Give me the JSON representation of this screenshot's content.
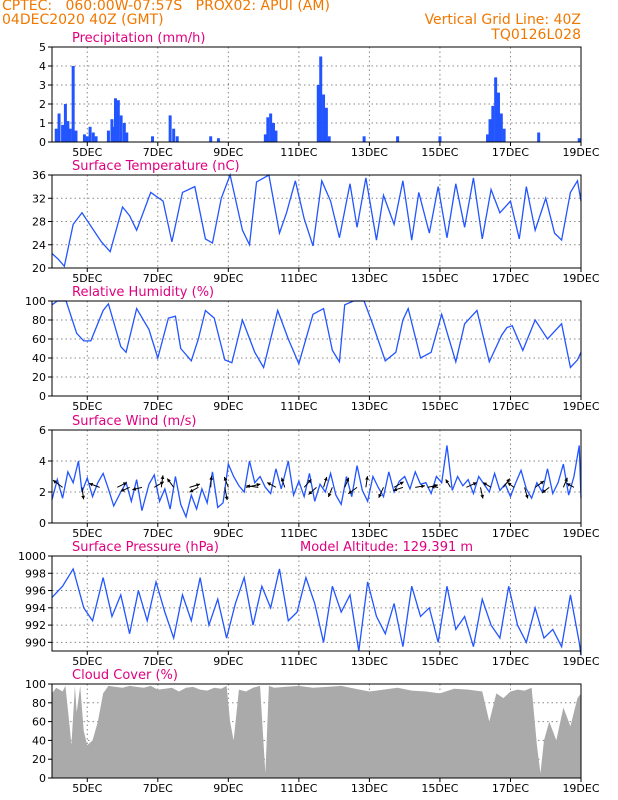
{
  "header": {
    "station": "CPTEC:   060:00W-07:57S   PROX02: APUI (AM)",
    "run": "04DEC2020 40Z (GMT)",
    "grid_note": "Vertical Grid Line: 40Z",
    "model": "TQ0126L028"
  },
  "colors": {
    "series": "#2255ff",
    "title": "#e0007f",
    "header": "#f07800",
    "cloud": "#aaaaaa"
  },
  "x_axis": {
    "range_days": [
      4,
      19
    ],
    "ticks": [
      5,
      7,
      9,
      11,
      13,
      15,
      17,
      19
    ],
    "tick_labels": [
      "5DEC",
      "7DEC",
      "9DEC",
      "11DEC",
      "13DEC",
      "15DEC",
      "17DEC",
      "19DEC"
    ]
  },
  "chart_data": [
    {
      "type": "bar",
      "title": "Precipitation (mm/h)",
      "ylim": [
        0,
        5
      ],
      "yticks": [
        0,
        1,
        2,
        3,
        4,
        5
      ],
      "x": [
        4.12,
        4.2,
        4.3,
        4.38,
        4.45,
        4.52,
        4.6,
        4.68,
        4.92,
        5.0,
        5.08,
        5.17,
        5.25,
        5.6,
        5.7,
        5.75,
        5.8,
        5.88,
        5.96,
        6.05,
        6.12,
        6.85,
        7.35,
        7.45,
        7.55,
        8.5,
        8.72,
        10.05,
        10.12,
        10.2,
        10.28,
        10.35,
        11.55,
        11.62,
        11.7,
        11.78,
        11.86,
        12.85,
        13.8,
        15.0,
        16.35,
        16.42,
        16.5,
        16.58,
        16.66,
        16.74,
        16.82,
        17.8,
        18.95
      ],
      "values": [
        0.7,
        1.5,
        0.9,
        2.0,
        1.1,
        0.7,
        4.0,
        0.6,
        0.4,
        0.3,
        0.8,
        0.5,
        0.3,
        0.6,
        1.2,
        0.8,
        2.3,
        2.2,
        1.4,
        1.0,
        0.5,
        0.3,
        1.4,
        0.7,
        0.3,
        0.3,
        0.2,
        0.4,
        1.3,
        1.5,
        1.0,
        0.6,
        3.0,
        4.5,
        2.5,
        1.8,
        0.3,
        0.3,
        0.3,
        0.3,
        0.4,
        1.2,
        1.9,
        3.4,
        2.6,
        1.5,
        0.7,
        0.5,
        0.2
      ]
    },
    {
      "type": "line",
      "title": "Surface Temperature (nC)",
      "ylim": [
        20,
        36
      ],
      "yticks": [
        20,
        24,
        28,
        32,
        36
      ],
      "x": [
        4.0,
        4.18,
        4.35,
        4.6,
        4.85,
        5.4,
        5.65,
        6.0,
        6.2,
        6.4,
        6.8,
        7.15,
        7.4,
        7.7,
        8.05,
        8.35,
        8.55,
        8.8,
        9.05,
        9.4,
        9.6,
        9.8,
        10.15,
        10.45,
        10.65,
        10.9,
        11.15,
        11.4,
        11.65,
        11.9,
        12.15,
        12.45,
        12.65,
        12.9,
        13.2,
        13.4,
        13.7,
        13.95,
        14.2,
        14.4,
        14.7,
        14.95,
        15.2,
        15.45,
        15.7,
        15.95,
        16.2,
        16.45,
        16.7,
        17.0,
        17.25,
        17.45,
        17.7,
        18.0,
        18.25,
        18.45,
        18.7,
        18.9,
        19.0
      ],
      "values": [
        22.5,
        21.5,
        20.3,
        27.5,
        29.5,
        24.5,
        22.8,
        30.5,
        29.0,
        26.5,
        33.0,
        31.5,
        24.5,
        33.0,
        34.0,
        25.0,
        24.3,
        32.0,
        36.0,
        26.5,
        24.0,
        34.8,
        36.0,
        26.0,
        29.5,
        35.0,
        28.5,
        23.8,
        35.0,
        31.5,
        25.2,
        34.5,
        27.0,
        35.5,
        24.8,
        32.5,
        27.5,
        35.0,
        24.8,
        33.0,
        26.0,
        34.0,
        25.2,
        34.5,
        27.0,
        35.5,
        25.0,
        33.5,
        29.5,
        31.5,
        25.0,
        34.0,
        26.5,
        32.0,
        26.0,
        24.8,
        33.0,
        35.0,
        31.5
      ]
    },
    {
      "type": "line",
      "title": "Relative Humidity (%)",
      "ylim": [
        0,
        100
      ],
      "yticks": [
        0,
        20,
        40,
        60,
        80,
        100
      ],
      "x": [
        4.0,
        4.15,
        4.4,
        4.7,
        4.9,
        5.1,
        5.45,
        5.6,
        5.95,
        6.1,
        6.4,
        6.75,
        7.0,
        7.3,
        7.5,
        7.65,
        7.95,
        8.15,
        8.35,
        8.6,
        8.9,
        9.1,
        9.4,
        9.75,
        10.0,
        10.4,
        10.7,
        11.0,
        11.4,
        11.7,
        11.95,
        12.15,
        12.3,
        12.55,
        12.85,
        13.1,
        13.45,
        13.75,
        13.95,
        14.1,
        14.45,
        14.75,
        15.05,
        15.45,
        15.7,
        16.05,
        16.4,
        16.75,
        16.9,
        17.05,
        17.35,
        17.7,
        18.05,
        18.45,
        18.7,
        18.9,
        19.0
      ],
      "values": [
        96,
        100,
        100,
        66,
        58,
        58,
        90,
        97,
        52,
        46,
        92,
        70,
        40,
        82,
        84,
        50,
        37,
        60,
        90,
        82,
        38,
        35,
        80,
        46,
        30,
        90,
        60,
        34,
        86,
        92,
        48,
        36,
        96,
        100,
        100,
        75,
        37,
        46,
        80,
        92,
        40,
        46,
        86,
        36,
        76,
        90,
        36,
        64,
        72,
        74,
        48,
        80,
        60,
        76,
        30,
        38,
        46
      ]
    },
    {
      "type": "line",
      "title": "Surface Wind (m/s)",
      "ylim": [
        0,
        6
      ],
      "yticks": [
        0,
        2,
        4,
        6
      ],
      "x": [
        4.0,
        4.15,
        4.3,
        4.45,
        4.6,
        4.75,
        4.85,
        5.0,
        5.15,
        5.3,
        5.45,
        5.6,
        5.75,
        5.95,
        6.1,
        6.25,
        6.4,
        6.55,
        6.75,
        6.9,
        7.05,
        7.2,
        7.35,
        7.5,
        7.65,
        7.8,
        7.95,
        8.1,
        8.25,
        8.4,
        8.55,
        8.7,
        8.85,
        9.0,
        9.15,
        9.3,
        9.45,
        9.6,
        9.75,
        9.9,
        10.05,
        10.2,
        10.35,
        10.5,
        10.7,
        10.85,
        11.0,
        11.15,
        11.3,
        11.45,
        11.6,
        11.75,
        11.9,
        12.05,
        12.2,
        12.35,
        12.5,
        12.65,
        12.8,
        12.95,
        13.1,
        13.25,
        13.4,
        13.55,
        13.7,
        13.85,
        14.0,
        14.15,
        14.3,
        14.45,
        14.6,
        14.75,
        14.9,
        15.05,
        15.2,
        15.35,
        15.5,
        15.65,
        15.8,
        15.95,
        16.1,
        16.25,
        16.4,
        16.55,
        16.7,
        16.85,
        17.0,
        17.15,
        17.3,
        17.45,
        17.6,
        17.75,
        17.9,
        18.05,
        18.2,
        18.35,
        18.5,
        18.65,
        18.8,
        18.95,
        19.0
      ],
      "values": [
        1.5,
        2.8,
        1.6,
        3.3,
        2.6,
        4.0,
        2.0,
        2.9,
        1.7,
        2.6,
        3.2,
        2.2,
        1.1,
        2.0,
        2.6,
        1.4,
        2.8,
        0.8,
        2.5,
        3.1,
        1.4,
        2.2,
        0.9,
        3.0,
        1.2,
        0.4,
        1.8,
        0.9,
        2.2,
        1.3,
        3.3,
        1.0,
        1.3,
        3.8,
        3.0,
        2.4,
        2.0,
        4.0,
        2.6,
        3.0,
        2.3,
        1.9,
        3.5,
        2.2,
        4.0,
        1.8,
        2.7,
        1.7,
        3.2,
        1.4,
        2.5,
        2.0,
        3.2,
        1.8,
        1.2,
        3.0,
        1.7,
        3.7,
        2.1,
        1.4,
        3.0,
        2.3,
        1.7,
        3.3,
        2.0,
        2.7,
        3.0,
        2.2,
        3.3,
        2.5,
        2.6,
        1.9,
        3.0,
        2.6,
        5.0,
        2.1,
        3.0,
        2.4,
        2.8,
        1.9,
        3.0,
        2.5,
        2.0,
        3.2,
        2.1,
        2.5,
        1.7,
        2.6,
        3.4,
        2.2,
        1.6,
        2.6,
        2.0,
        3.5,
        1.9,
        2.6,
        3.8,
        1.8,
        3.0,
        5.0,
        1.6
      ],
      "arrows": [
        {
          "day": 4.3,
          "u": -1.2,
          "v": 0.9
        },
        {
          "day": 4.85,
          "u": 0.2,
          "v": -1.5
        },
        {
          "day": 5.35,
          "u": -1.3,
          "v": 0.5
        },
        {
          "day": 5.85,
          "u": 1.2,
          "v": 0.6
        },
        {
          "day": 6.2,
          "u": -1.1,
          "v": -0.5
        },
        {
          "day": 6.55,
          "u": -1.2,
          "v": -0.3
        },
        {
          "day": 6.9,
          "u": 1.2,
          "v": 0.7
        },
        {
          "day": 7.1,
          "u": 0.2,
          "v": 1.5
        },
        {
          "day": 7.45,
          "u": -0.8,
          "v": 1.1
        },
        {
          "day": 7.9,
          "u": 1.3,
          "v": 0.4
        },
        {
          "day": 8.15,
          "u": -1.1,
          "v": -0.6
        },
        {
          "day": 8.5,
          "u": 0.1,
          "v": 1.4
        },
        {
          "day": 8.9,
          "u": 0.3,
          "v": -1.6
        },
        {
          "day": 9.0,
          "u": -0.5,
          "v": 1.3
        },
        {
          "day": 9.5,
          "u": 1.8,
          "v": 0.4
        },
        {
          "day": 9.85,
          "u": -1.5,
          "v": 0.2
        },
        {
          "day": 10.35,
          "u": -1.1,
          "v": 0.6
        },
        {
          "day": 10.6,
          "u": -0.4,
          "v": 1.2
        },
        {
          "day": 11.15,
          "u": 0.9,
          "v": 1.0
        },
        {
          "day": 11.5,
          "u": -1.0,
          "v": -0.9
        },
        {
          "day": 11.7,
          "u": 0.4,
          "v": 1.3
        },
        {
          "day": 11.95,
          "u": -0.5,
          "v": -1.2
        },
        {
          "day": 12.3,
          "u": 0.5,
          "v": 1.2
        },
        {
          "day": 12.65,
          "u": -1.1,
          "v": -0.8
        },
        {
          "day": 12.9,
          "u": 0.2,
          "v": 1.4
        },
        {
          "day": 13.4,
          "u": -0.6,
          "v": -1.3
        },
        {
          "day": 13.7,
          "u": 1.2,
          "v": 0.7
        },
        {
          "day": 13.95,
          "u": -1.2,
          "v": -0.4
        },
        {
          "day": 14.3,
          "u": 1.2,
          "v": 0.2
        },
        {
          "day": 14.65,
          "u": 1.3,
          "v": 0.3
        },
        {
          "day": 14.95,
          "u": -0.9,
          "v": 0.1
        },
        {
          "day": 15.3,
          "u": -0.6,
          "v": 1.0
        },
        {
          "day": 15.75,
          "u": 1.3,
          "v": 0.6
        },
        {
          "day": 16.15,
          "u": 0.3,
          "v": -1.4
        },
        {
          "day": 16.45,
          "u": -1.0,
          "v": 0.6
        },
        {
          "day": 16.8,
          "u": 0.8,
          "v": 1.1
        },
        {
          "day": 17.1,
          "u": -0.8,
          "v": 0.6
        },
        {
          "day": 17.4,
          "u": 0.4,
          "v": -1.4
        },
        {
          "day": 17.7,
          "u": 1.1,
          "v": 0.8
        },
        {
          "day": 18.1,
          "u": -0.9,
          "v": -0.7
        },
        {
          "day": 18.5,
          "u": 0.5,
          "v": 1.2
        },
        {
          "day": 18.8,
          "u": -0.9,
          "v": 0.5
        }
      ]
    },
    {
      "type": "line",
      "title": "Surface Pressure (hPa)",
      "annotation": "Model Altitude: 129.391 m",
      "ylim": [
        989,
        1000
      ],
      "yticks": [
        990,
        992,
        994,
        996,
        998,
        1000
      ],
      "x": [
        4.0,
        4.3,
        4.6,
        4.9,
        5.15,
        5.45,
        5.7,
        5.95,
        6.2,
        6.45,
        6.7,
        6.95,
        7.2,
        7.45,
        7.7,
        7.95,
        8.2,
        8.45,
        8.7,
        8.95,
        9.2,
        9.45,
        9.7,
        9.95,
        10.2,
        10.45,
        10.7,
        10.95,
        11.2,
        11.45,
        11.7,
        11.95,
        12.2,
        12.45,
        12.7,
        12.95,
        13.2,
        13.45,
        13.7,
        13.95,
        14.2,
        14.45,
        14.7,
        14.95,
        15.2,
        15.45,
        15.7,
        15.95,
        16.2,
        16.45,
        16.7,
        16.95,
        17.2,
        17.45,
        17.7,
        17.95,
        18.2,
        18.45,
        18.7,
        18.95,
        19.0
      ],
      "values": [
        995.2,
        996.5,
        998.5,
        994.0,
        992.5,
        997.5,
        993.0,
        995.5,
        991.0,
        996.0,
        992.5,
        997.0,
        993.5,
        990.5,
        995.5,
        992.5,
        997.5,
        992.0,
        995.0,
        990.5,
        994.5,
        997.5,
        992.0,
        996.5,
        994.0,
        998.5,
        992.5,
        993.5,
        997.5,
        994.5,
        990.0,
        996.5,
        993.5,
        995.5,
        989.0,
        997.0,
        993.0,
        991.0,
        994.5,
        989.5,
        996.5,
        993.0,
        994.0,
        990.0,
        996.5,
        991.5,
        993.0,
        989.5,
        995.0,
        992.0,
        990.5,
        996.5,
        992.0,
        990.0,
        994.0,
        990.5,
        991.5,
        989.5,
        995.5,
        990.0,
        988.5
      ]
    },
    {
      "type": "area",
      "title": "Cloud Cover (%)",
      "ylim": [
        0,
        100
      ],
      "yticks": [
        0,
        20,
        40,
        60,
        80,
        100
      ],
      "x": [
        4.0,
        4.12,
        4.3,
        4.38,
        4.5,
        4.55,
        4.65,
        4.7,
        4.8,
        4.9,
        5.0,
        5.15,
        5.3,
        5.45,
        5.6,
        5.8,
        6.0,
        6.2,
        6.4,
        6.6,
        6.8,
        7.0,
        7.2,
        7.4,
        7.6,
        7.8,
        8.0,
        8.2,
        8.4,
        8.6,
        8.8,
        8.95,
        9.05,
        9.15,
        9.3,
        9.5,
        9.7,
        9.9,
        10.05,
        10.15,
        10.3,
        10.6,
        11.0,
        11.4,
        11.8,
        12.2,
        12.6,
        13.0,
        13.4,
        13.8,
        14.2,
        14.6,
        15.0,
        15.4,
        15.8,
        16.2,
        16.4,
        16.6,
        16.8,
        17.0,
        17.2,
        17.4,
        17.6,
        17.75,
        17.85,
        17.95,
        18.1,
        18.3,
        18.5,
        18.7,
        18.9,
        19.0
      ],
      "values": [
        90,
        96,
        92,
        98,
        55,
        35,
        98,
        70,
        98,
        50,
        35,
        40,
        60,
        90,
        98,
        97,
        96,
        98,
        97,
        96,
        98,
        94,
        95,
        96,
        92,
        96,
        97,
        94,
        93,
        96,
        95,
        98,
        60,
        40,
        94,
        92,
        96,
        98,
        5,
        98,
        96,
        97,
        98,
        96,
        97,
        98,
        95,
        92,
        94,
        96,
        93,
        92,
        90,
        95,
        94,
        92,
        60,
        90,
        85,
        92,
        94,
        93,
        96,
        35,
        5,
        40,
        60,
        40,
        75,
        55,
        85,
        90
      ]
    }
  ]
}
